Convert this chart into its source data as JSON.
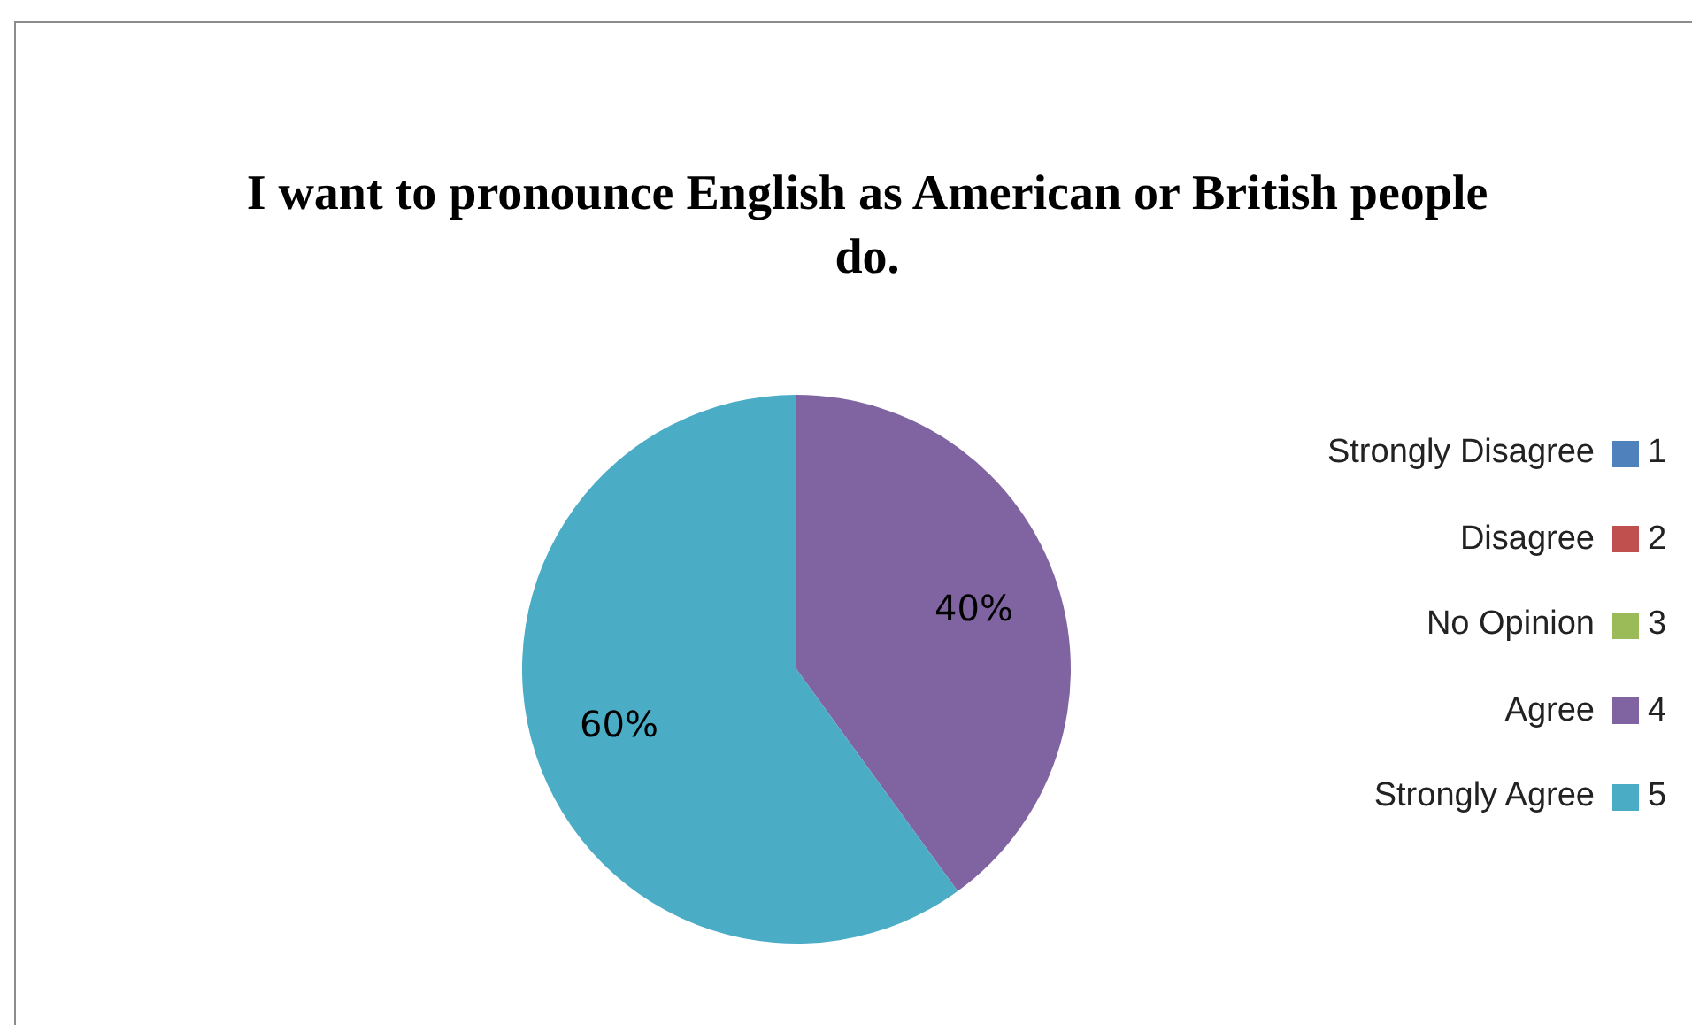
{
  "chart_data": {
    "type": "pie",
    "title": "I want to pronounce English as American or British people do.",
    "categories": [
      "1",
      "2",
      "3",
      "4",
      "5"
    ],
    "values": [
      0,
      0,
      0,
      40,
      60
    ],
    "colors": [
      "#4f81bd",
      "#c0504d",
      "#9bbb59",
      "#8064a2",
      "#4bacc6"
    ],
    "value_labels": [
      null,
      null,
      null,
      "40%",
      "60%"
    ],
    "annotations": [
      "Strongly Disagree",
      "Disagree",
      "No Opinion",
      "Agree",
      "Strongly Agree"
    ],
    "legend": "right"
  }
}
